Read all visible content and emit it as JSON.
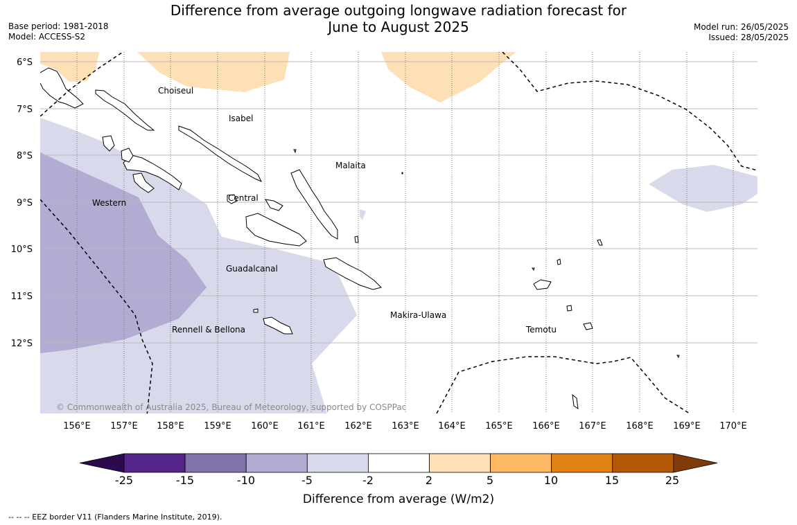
{
  "header": {
    "title_line1": "Difference from average outgoing longwave radiation forecast for",
    "title_line2": "June to August 2025",
    "base_period": "Base period: 1981-2018",
    "model": "Model: ACCESS-S2",
    "model_run": "Model run: 26/05/2025",
    "issued": "Issued: 28/05/2025"
  },
  "map": {
    "lat_labels": [
      "6°S",
      "7°S",
      "8°S",
      "9°S",
      "10°S",
      "11°S",
      "12°S"
    ],
    "lon_labels": [
      "156°E",
      "157°E",
      "158°E",
      "159°E",
      "160°E",
      "161°E",
      "162°E",
      "163°E",
      "164°E",
      "165°E",
      "166°E",
      "167°E",
      "168°E",
      "169°E",
      "170°E"
    ],
    "place_labels": [
      "Choiseul",
      "Isabel",
      "Malaita",
      "Western",
      "Central",
      "Guadalcanal",
      "Makira-Ulawa",
      "Rennell & Bellona",
      "Temotu"
    ],
    "copyright": "© Commonwealth of Australia 2025, Bureau of Meteorology, supported by COSPPac"
  },
  "colorbar": {
    "ticks": [
      "-25",
      "-15",
      "-10",
      "-5",
      "-2",
      "2",
      "5",
      "10",
      "15",
      "25"
    ],
    "colors": [
      "#2d0a4e",
      "#542588",
      "#8073ac",
      "#b2abd2",
      "#d8daeb",
      "#ffffff",
      "#fee0b6",
      "#fdb863",
      "#e08214",
      "#b35806",
      "#7f3b08"
    ],
    "label": "Difference from average (W/m2)"
  },
  "footnote": "--  --  -- EEZ border V11 (Flanders Marine Institute, 2019)."
}
